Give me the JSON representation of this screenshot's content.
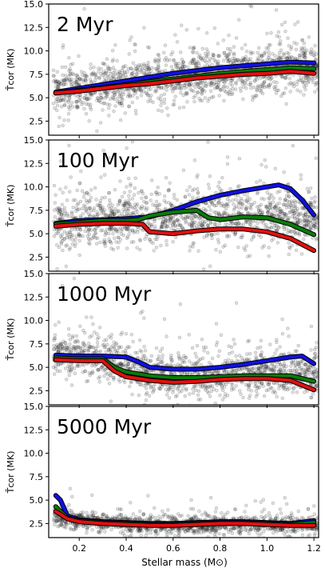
{
  "chart_data": {
    "type": "scatter",
    "xlabel": "Stellar mass (M⊙)",
    "ylabel": "T̄cor (MK)",
    "xlim": [
      0.07,
      1.22
    ],
    "ylim": [
      1.0,
      15.0
    ],
    "xticks": [
      0.2,
      0.4,
      0.6,
      0.8,
      1.0,
      1.2
    ],
    "xtick_labels": [
      "0.2",
      "0.4",
      "0.6",
      "0.8",
      "1.0",
      "1.2"
    ],
    "yticks": [
      2.5,
      5.0,
      7.5,
      10.0,
      12.5,
      15.0
    ],
    "ytick_labels": [
      "2.5",
      "5.0",
      "7.5",
      "10.0",
      "12.5",
      "15.0"
    ],
    "series_colors": {
      "blue": "#1010e0",
      "green": "#0a7a0a",
      "red": "#e01010",
      "points": "#333333"
    },
    "panels": [
      {
        "label": "2 Myr",
        "scatter_center": [
          [
            0.1,
            5.6
          ],
          [
            0.3,
            6.2
          ],
          [
            0.5,
            6.8
          ],
          [
            0.7,
            7.3
          ],
          [
            0.9,
            7.8
          ],
          [
            1.2,
            8.2
          ]
        ],
        "scatter_spread": 1.6,
        "scatter_count": 1600,
        "series": [
          {
            "color": "blue",
            "x": [
              0.1,
              0.2,
              0.3,
              0.4,
              0.5,
              0.6,
              0.7,
              0.8,
              0.9,
              1.0,
              1.1,
              1.2
            ],
            "y": [
              5.6,
              6.0,
              6.4,
              6.8,
              7.2,
              7.6,
              7.9,
              8.2,
              8.4,
              8.6,
              8.8,
              8.7
            ]
          },
          {
            "color": "green",
            "x": [
              0.1,
              0.2,
              0.3,
              0.4,
              0.5,
              0.6,
              0.7,
              0.8,
              0.9,
              1.0,
              1.1,
              1.2
            ],
            "y": [
              5.5,
              5.8,
              6.1,
              6.4,
              6.7,
              7.0,
              7.3,
              7.6,
              7.8,
              8.0,
              8.2,
              8.1
            ]
          },
          {
            "color": "red",
            "x": [
              0.1,
              0.2,
              0.3,
              0.4,
              0.5,
              0.6,
              0.7,
              0.8,
              0.9,
              1.0,
              1.1,
              1.2
            ],
            "y": [
              5.5,
              5.7,
              6.0,
              6.3,
              6.5,
              6.8,
              7.1,
              7.3,
              7.5,
              7.6,
              7.8,
              7.6
            ]
          }
        ]
      },
      {
        "label": "100 Myr",
        "scatter_center": [
          [
            0.1,
            6.0
          ],
          [
            0.3,
            6.5
          ],
          [
            0.5,
            6.6
          ],
          [
            0.7,
            6.8
          ],
          [
            0.9,
            7.0
          ],
          [
            1.2,
            6.5
          ]
        ],
        "scatter_spread": 1.9,
        "scatter_count": 1500,
        "series": [
          {
            "color": "blue",
            "x": [
              0.1,
              0.2,
              0.3,
              0.4,
              0.5,
              0.6,
              0.7,
              0.8,
              0.9,
              1.0,
              1.05,
              1.1,
              1.15,
              1.2
            ],
            "y": [
              6.1,
              6.4,
              6.5,
              6.6,
              6.8,
              7.5,
              8.4,
              9.1,
              9.6,
              10.0,
              10.2,
              9.8,
              8.6,
              7.0
            ]
          },
          {
            "color": "green",
            "x": [
              0.1,
              0.2,
              0.3,
              0.4,
              0.45,
              0.5,
              0.6,
              0.7,
              0.75,
              0.8,
              0.9,
              1.0,
              1.1,
              1.2
            ],
            "y": [
              6.0,
              6.2,
              6.4,
              6.4,
              6.5,
              6.9,
              7.3,
              7.5,
              6.7,
              6.5,
              6.8,
              6.7,
              6.0,
              4.9
            ]
          },
          {
            "color": "red",
            "x": [
              0.1,
              0.2,
              0.3,
              0.4,
              0.47,
              0.5,
              0.6,
              0.7,
              0.8,
              0.9,
              1.0,
              1.1,
              1.2
            ],
            "y": [
              5.8,
              6.0,
              6.1,
              6.1,
              6.0,
              5.2,
              5.0,
              5.3,
              5.5,
              5.5,
              5.2,
              4.5,
              3.2
            ]
          }
        ]
      },
      {
        "label": "1000 Myr",
        "scatter_center": [
          [
            0.1,
            6.5
          ],
          [
            0.3,
            6.0
          ],
          [
            0.5,
            4.3
          ],
          [
            0.7,
            4.0
          ],
          [
            0.9,
            4.3
          ],
          [
            1.2,
            4.5
          ]
        ],
        "scatter_spread": 1.5,
        "scatter_count": 1500,
        "series": [
          {
            "color": "blue",
            "x": [
              0.1,
              0.2,
              0.3,
              0.4,
              0.45,
              0.5,
              0.6,
              0.7,
              0.8,
              0.9,
              1.0,
              1.1,
              1.15,
              1.2
            ],
            "y": [
              6.3,
              6.2,
              6.2,
              6.1,
              5.6,
              5.0,
              4.8,
              4.8,
              5.0,
              5.3,
              5.7,
              6.1,
              6.2,
              5.4
            ]
          },
          {
            "color": "green",
            "x": [
              0.1,
              0.2,
              0.3,
              0.35,
              0.4,
              0.5,
              0.6,
              0.7,
              0.8,
              0.9,
              1.0,
              1.1,
              1.2
            ],
            "y": [
              6.0,
              5.9,
              5.9,
              5.0,
              4.5,
              4.1,
              3.9,
              3.9,
              4.0,
              4.1,
              4.1,
              4.1,
              3.5
            ]
          },
          {
            "color": "red",
            "x": [
              0.1,
              0.2,
              0.3,
              0.35,
              0.4,
              0.5,
              0.6,
              0.7,
              0.8,
              0.9,
              1.0,
              1.1,
              1.2
            ],
            "y": [
              5.8,
              5.7,
              5.7,
              4.6,
              4.0,
              3.6,
              3.4,
              3.5,
              3.7,
              3.8,
              3.8,
              3.6,
              2.6
            ]
          }
        ]
      },
      {
        "label": "5000 Myr",
        "scatter_center": [
          [
            0.1,
            3.2
          ],
          [
            0.3,
            2.6
          ],
          [
            0.5,
            2.3
          ],
          [
            0.7,
            2.3
          ],
          [
            0.9,
            2.4
          ],
          [
            1.2,
            2.4
          ]
        ],
        "scatter_spread": 0.6,
        "scatter_count": 1500,
        "series": [
          {
            "color": "blue",
            "x": [
              0.1,
              0.12,
              0.15,
              0.2,
              0.3,
              0.4,
              0.5,
              0.6,
              0.7,
              0.8,
              0.9,
              1.0,
              1.1,
              1.2
            ],
            "y": [
              5.5,
              5.0,
              3.3,
              2.9,
              2.7,
              2.6,
              2.5,
              2.5,
              2.6,
              2.7,
              2.7,
              2.6,
              2.5,
              2.8
            ]
          },
          {
            "color": "green",
            "x": [
              0.1,
              0.12,
              0.15,
              0.2,
              0.3,
              0.4,
              0.5,
              0.6,
              0.7,
              0.8,
              0.9,
              1.0,
              1.1,
              1.2
            ],
            "y": [
              4.3,
              3.8,
              3.1,
              2.8,
              2.6,
              2.5,
              2.4,
              2.4,
              2.5,
              2.6,
              2.6,
              2.5,
              2.4,
              2.6
            ]
          },
          {
            "color": "red",
            "x": [
              0.1,
              0.12,
              0.15,
              0.2,
              0.3,
              0.4,
              0.5,
              0.6,
              0.7,
              0.8,
              0.9,
              1.0,
              1.1,
              1.2
            ],
            "y": [
              3.8,
              3.5,
              3.0,
              2.7,
              2.5,
              2.4,
              2.3,
              2.3,
              2.4,
              2.5,
              2.5,
              2.4,
              2.3,
              2.3
            ]
          }
        ]
      }
    ]
  }
}
